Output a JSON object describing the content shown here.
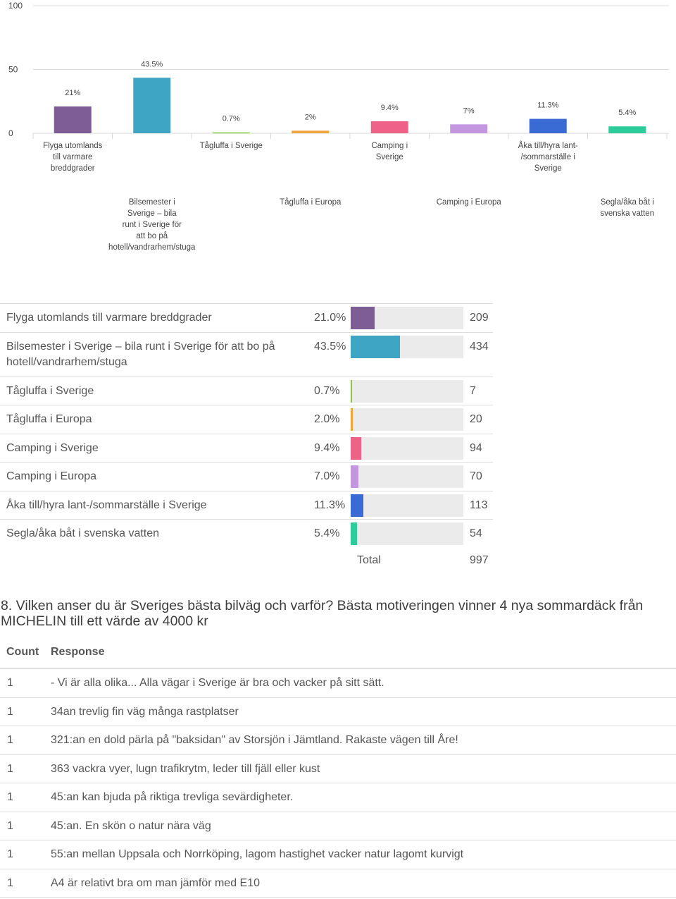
{
  "colors": {
    "bars": [
      "#7e5c94",
      "#3ea5c4",
      "#8dc63f",
      "#f0a43a",
      "#ee6287",
      "#c396e0",
      "#3a6ad4",
      "#2ecc9a"
    ],
    "track": "#ebebeb",
    "grid": "#d9d9d9",
    "text": "#555555"
  },
  "chart_data": {
    "type": "bar",
    "categories": [
      "Flyga utomlands till varmare breddgrader",
      "Bilsemester i Sverige – bila runt i Sverige för att bo på hotell/vandrarhem/stuga",
      "Tågluffa i Sverige",
      "Tågluffa i Europa",
      "Camping i Sverige",
      "Camping i Europa",
      "Åka till/hyra lant-/sommarställe i Sverige",
      "Segla/åka båt i svenska vatten"
    ],
    "values": [
      21,
      43.5,
      0.7,
      2,
      9.4,
      7,
      11.3,
      5.4
    ],
    "value_labels": [
      "21%",
      "43.5%",
      "0.7%",
      "2%",
      "9.4%",
      "7%",
      "11.3%",
      "5.4%"
    ],
    "x_tick_lines": [
      [
        "Flyga utomlands",
        "till varmare",
        "breddgrader"
      ],
      [
        "Bilsemester i",
        "Sverige – bila",
        "runt i Sverige för",
        "att bo på",
        "hotell/vandrarhem/stuga"
      ],
      [
        "Tågluffa i Sverige"
      ],
      [
        "Tågluffa i Europa"
      ],
      [
        "Camping i",
        "Sverige"
      ],
      [
        "Camping i Europa"
      ],
      [
        "Åka till/hyra lant-",
        "/sommarställe i",
        "Sverige"
      ],
      [
        "Segla/åka båt i",
        "svenska vatten"
      ]
    ],
    "y_ticks": [
      0,
      50,
      100
    ],
    "ylim": [
      0,
      100
    ],
    "grid": true,
    "legend": "none"
  },
  "summary": {
    "rows": [
      {
        "category": "Flyga utomlands till varmare breddgrader",
        "percent": "21.0%",
        "value": 21.0,
        "count": "209"
      },
      {
        "category": "Bilsemester i Sverige – bila runt i Sverige för att bo på hotell/vandrarhem/stuga",
        "percent": "43.5%",
        "value": 43.5,
        "count": "434"
      },
      {
        "category": "Tågluffa i Sverige",
        "percent": "0.7%",
        "value": 0.7,
        "count": "7"
      },
      {
        "category": "Tågluffa i Europa",
        "percent": "2.0%",
        "value": 2.0,
        "count": "20"
      },
      {
        "category": "Camping i Sverige",
        "percent": "9.4%",
        "value": 9.4,
        "count": "94"
      },
      {
        "category": "Camping i Europa",
        "percent": "7.0%",
        "value": 7.0,
        "count": "70"
      },
      {
        "category": "Åka till/hyra lant-/sommarställe i Sverige",
        "percent": "11.3%",
        "value": 11.3,
        "count": "113"
      },
      {
        "category": "Segla/åka båt i svenska vatten",
        "percent": "5.4%",
        "value": 5.4,
        "count": "54"
      }
    ],
    "total_label": "Total",
    "total_count": "997"
  },
  "question": {
    "title": "8. Vilken anser du är Sveriges bästa bilväg och varför? Bästa motiveringen vinner 4 nya sommardäck från MICHELIN till ett värde av 4000 kr",
    "count_header": "Count",
    "response_header": "Response",
    "responses": [
      {
        "count": "1",
        "text": "- Vi är alla olika... Alla vägar i Sverige är bra och vacker på sitt sätt."
      },
      {
        "count": "1",
        "text": "34an trevlig fin väg många rastplatser"
      },
      {
        "count": "1",
        "text": "321:an en dold pärla på \"baksidan\" av Storsjön i Jämtland. Rakaste vägen till Åre!"
      },
      {
        "count": "1",
        "text": "363 vackra vyer, lugn trafikrytm, leder till fjäll eller kust"
      },
      {
        "count": "1",
        "text": "45:an kan bjuda på riktiga trevliga sevärdigheter."
      },
      {
        "count": "1",
        "text": "45:an. En skön o natur nära väg"
      },
      {
        "count": "1",
        "text": "55:an mellan Uppsala och Norrköping, lagom hastighet vacker natur lagomt kurvigt"
      },
      {
        "count": "1",
        "text": "A4 är relativt bra om man jämför med E10"
      }
    ]
  }
}
